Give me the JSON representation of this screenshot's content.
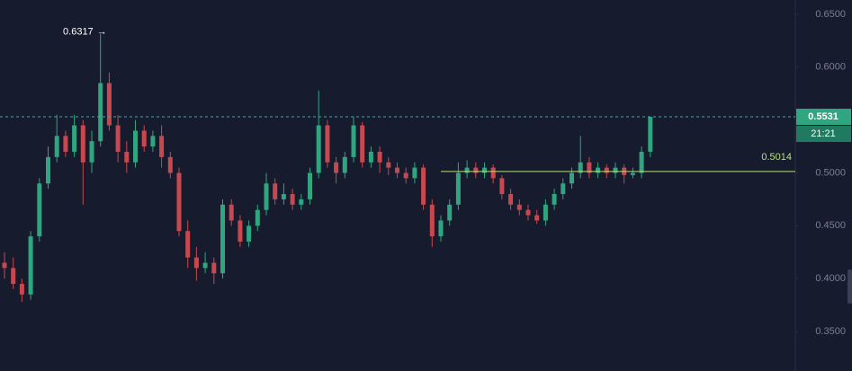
{
  "chart_data": {
    "type": "candlestick",
    "up_color": "#2fa67f",
    "down_color": "#c7494f",
    "high_label": 0.6317,
    "level": 0.5014,
    "level_color": "#b7e07a",
    "last_price": 0.5531,
    "countdown": "21:21",
    "ylim": [
      0.3126,
      0.6636
    ],
    "yticks": [
      {
        "value": 0.65,
        "label": "0.6500"
      },
      {
        "value": 0.6,
        "label": "0.6000"
      },
      {
        "value": 0.55,
        "label": "0.5500"
      },
      {
        "value": 0.5,
        "label": "0.5000"
      },
      {
        "value": 0.45,
        "label": "0.4500"
      },
      {
        "value": 0.4,
        "label": "0.4000"
      },
      {
        "value": 0.35,
        "label": "0.3500"
      }
    ],
    "open": [
      0.415,
      0.41,
      0.395,
      0.385,
      0.44,
      0.49,
      0.515,
      0.535,
      0.52,
      0.545,
      0.51,
      0.53,
      0.585,
      0.545,
      0.52,
      0.51,
      0.54,
      0.525,
      0.535,
      0.515,
      0.5,
      0.445,
      0.42,
      0.41,
      0.415,
      0.405,
      0.47,
      0.455,
      0.435,
      0.45,
      0.465,
      0.49,
      0.475,
      0.48,
      0.47,
      0.475,
      0.5,
      0.545,
      0.51,
      0.5,
      0.515,
      0.545,
      0.51,
      0.52,
      0.51,
      0.505,
      0.5,
      0.495,
      0.505,
      0.47,
      0.44,
      0.455,
      0.47,
      0.5,
      0.505,
      0.5,
      0.505,
      0.495,
      0.48,
      0.47,
      0.465,
      0.46,
      0.455,
      0.47,
      0.48,
      0.49,
      0.5,
      0.51,
      0.5,
      0.505,
      0.5,
      0.505,
      0.498,
      0.5,
      0.52
    ],
    "high": [
      0.425,
      0.42,
      0.4,
      0.445,
      0.495,
      0.525,
      0.555,
      0.54,
      0.555,
      0.55,
      0.54,
      0.6317,
      0.595,
      0.555,
      0.53,
      0.55,
      0.545,
      0.54,
      0.545,
      0.52,
      0.505,
      0.455,
      0.43,
      0.425,
      0.42,
      0.475,
      0.475,
      0.46,
      0.455,
      0.47,
      0.5,
      0.495,
      0.49,
      0.485,
      0.48,
      0.505,
      0.578,
      0.55,
      0.515,
      0.52,
      0.553,
      0.548,
      0.525,
      0.525,
      0.515,
      0.51,
      0.505,
      0.51,
      0.508,
      0.475,
      0.46,
      0.475,
      0.51,
      0.512,
      0.51,
      0.51,
      0.508,
      0.498,
      0.485,
      0.475,
      0.47,
      0.465,
      0.475,
      0.485,
      0.495,
      0.505,
      0.535,
      0.515,
      0.51,
      0.508,
      0.51,
      0.508,
      0.505,
      0.525,
      0.5531
    ],
    "low": [
      0.4,
      0.39,
      0.378,
      0.38,
      0.435,
      0.485,
      0.51,
      0.515,
      0.515,
      0.47,
      0.5,
      0.525,
      0.54,
      0.51,
      0.5,
      0.505,
      0.52,
      0.52,
      0.505,
      0.495,
      0.44,
      0.41,
      0.398,
      0.405,
      0.395,
      0.4,
      0.45,
      0.43,
      0.43,
      0.445,
      0.46,
      0.47,
      0.47,
      0.465,
      0.465,
      0.47,
      0.495,
      0.505,
      0.49,
      0.495,
      0.51,
      0.505,
      0.505,
      0.5,
      0.498,
      0.495,
      0.49,
      0.49,
      0.465,
      0.43,
      0.435,
      0.45,
      0.465,
      0.495,
      0.495,
      0.495,
      0.49,
      0.475,
      0.465,
      0.46,
      0.455,
      0.452,
      0.45,
      0.465,
      0.475,
      0.485,
      0.495,
      0.495,
      0.495,
      0.495,
      0.495,
      0.49,
      0.495,
      0.495,
      0.515
    ],
    "close": [
      0.41,
      0.395,
      0.385,
      0.44,
      0.49,
      0.515,
      0.535,
      0.52,
      0.545,
      0.51,
      0.53,
      0.585,
      0.545,
      0.52,
      0.51,
      0.54,
      0.525,
      0.535,
      0.515,
      0.5,
      0.445,
      0.42,
      0.41,
      0.415,
      0.405,
      0.47,
      0.455,
      0.435,
      0.45,
      0.465,
      0.49,
      0.475,
      0.48,
      0.47,
      0.475,
      0.5,
      0.545,
      0.51,
      0.5,
      0.515,
      0.545,
      0.51,
      0.52,
      0.51,
      0.505,
      0.5,
      0.495,
      0.505,
      0.47,
      0.44,
      0.455,
      0.47,
      0.5,
      0.505,
      0.5,
      0.505,
      0.495,
      0.48,
      0.47,
      0.465,
      0.46,
      0.455,
      0.47,
      0.48,
      0.49,
      0.5,
      0.51,
      0.5,
      0.505,
      0.5,
      0.505,
      0.498,
      0.5,
      0.52,
      0.5531
    ]
  }
}
